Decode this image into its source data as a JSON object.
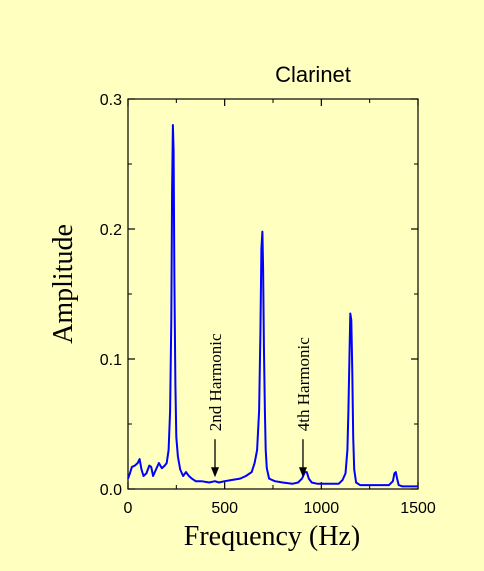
{
  "chart_data": {
    "type": "line",
    "title": "Clarinet",
    "xlabel": "Frequency (Hz)",
    "ylabel": "Amplitude",
    "xlim": [
      0,
      1500
    ],
    "ylim": [
      0,
      0.3
    ],
    "xticks": [
      0,
      500,
      1000,
      1500
    ],
    "xtick_labels": [
      "0",
      "500",
      "1000",
      "1500"
    ],
    "yticks": [
      0.0,
      0.1,
      0.2,
      0.3
    ],
    "ytick_labels": [
      "0.0",
      "0.1",
      "0.2",
      "0.3"
    ],
    "grid": false,
    "series": [
      {
        "color": "#0000ff",
        "x": [
          0,
          10,
          20,
          35,
          50,
          60,
          70,
          80,
          95,
          110,
          120,
          130,
          145,
          160,
          175,
          190,
          200,
          210,
          218,
          224,
          228,
          232,
          236,
          240,
          245,
          250,
          258,
          270,
          285,
          300,
          315,
          330,
          350,
          380,
          420,
          450,
          470,
          500,
          540,
          580,
          610,
          640,
          655,
          668,
          678,
          685,
          690,
          695,
          699,
          703,
          708,
          712,
          718,
          730,
          760,
          800,
          850,
          880,
          900,
          915,
          925,
          935,
          950,
          980,
          1020,
          1060,
          1090,
          1110,
          1125,
          1135,
          1140,
          1145,
          1150,
          1155,
          1160,
          1165,
          1170,
          1180,
          1200,
          1250,
          1300,
          1350,
          1370,
          1378,
          1385,
          1392,
          1400,
          1420,
          1460,
          1500
        ],
        "y": [
          0.008,
          0.012,
          0.017,
          0.018,
          0.02,
          0.023,
          0.015,
          0.01,
          0.012,
          0.018,
          0.017,
          0.01,
          0.015,
          0.02,
          0.016,
          0.018,
          0.02,
          0.03,
          0.06,
          0.13,
          0.23,
          0.28,
          0.26,
          0.16,
          0.08,
          0.04,
          0.025,
          0.015,
          0.01,
          0.013,
          0.01,
          0.008,
          0.006,
          0.006,
          0.005,
          0.006,
          0.005,
          0.006,
          0.007,
          0.008,
          0.01,
          0.013,
          0.02,
          0.03,
          0.06,
          0.12,
          0.185,
          0.198,
          0.17,
          0.11,
          0.06,
          0.03,
          0.016,
          0.008,
          0.006,
          0.005,
          0.004,
          0.005,
          0.008,
          0.013,
          0.013,
          0.008,
          0.005,
          0.004,
          0.004,
          0.004,
          0.004,
          0.007,
          0.012,
          0.03,
          0.06,
          0.1,
          0.135,
          0.13,
          0.09,
          0.04,
          0.015,
          0.005,
          0.003,
          0.003,
          0.003,
          0.003,
          0.006,
          0.012,
          0.013,
          0.008,
          0.003,
          0.002,
          0.002,
          0.002
        ]
      }
    ],
    "annotations": [
      {
        "text": "2nd Harmonic",
        "x": 450,
        "y": 0.006
      },
      {
        "text": "4th Harmonic",
        "x": 905,
        "y": 0.006
      }
    ]
  }
}
